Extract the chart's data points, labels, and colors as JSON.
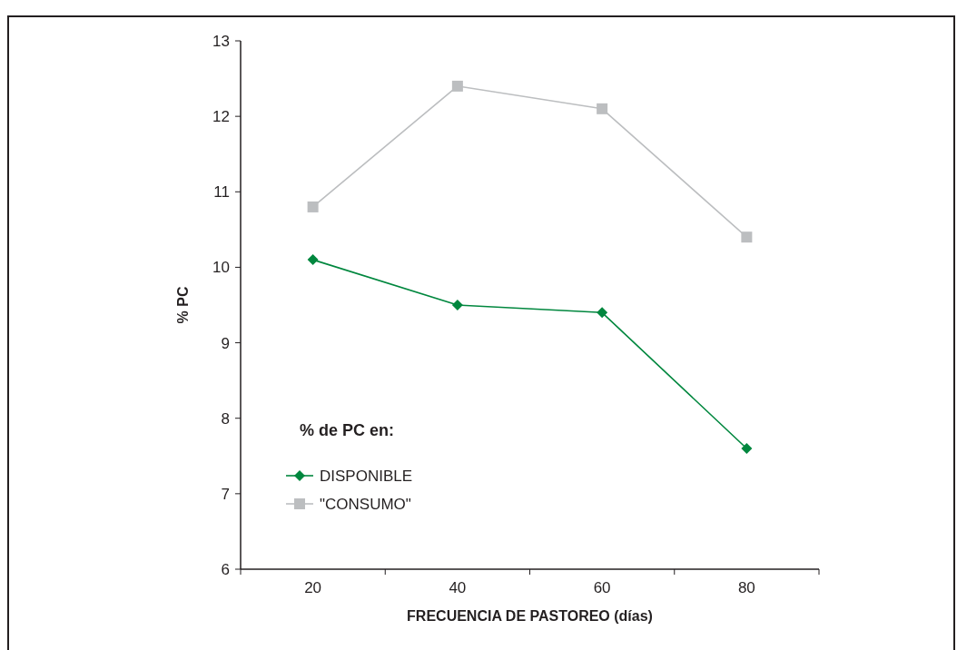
{
  "chart_data": {
    "type": "line",
    "xlabel": "FRECUENCIA DE PASTOREO (días)",
    "ylabel": "% PC",
    "legend_title": "% de PC en:",
    "categories": [
      "20",
      "40",
      "60",
      "80"
    ],
    "series": [
      {
        "name": "DISPONIBLE",
        "color": "#00873e",
        "marker": "diamond",
        "values": [
          10.1,
          9.5,
          9.4,
          7.6
        ]
      },
      {
        "name": "\"CONSUMO\"",
        "color": "#bcbec0",
        "marker": "square",
        "values": [
          10.8,
          12.4,
          12.1,
          10.4
        ]
      }
    ],
    "ylim": [
      6,
      13
    ],
    "yticks": [
      6,
      7,
      8,
      9,
      10,
      11,
      12,
      13
    ],
    "grid": false,
    "legend": "bottom left"
  }
}
